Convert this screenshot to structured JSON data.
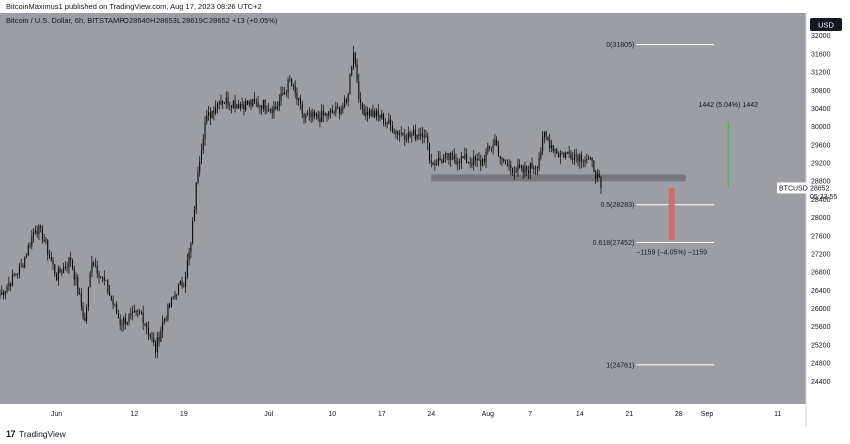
{
  "publisher": {
    "text": "BitcoinMaximus1 published on TradingView.com, Aug 17, 2023 08:26 UTC+2"
  },
  "header": {
    "symbol": "Bitcoin / U.S. Dollar, 6h, BITSTAMP",
    "o_label": "O",
    "o_value": "28640",
    "h_label": "H",
    "h_value": "28653",
    "l_label": "L",
    "l_value": "28619",
    "c_label": "C",
    "c_value": "28652",
    "change": "+13 (+0.05%)",
    "currency_button": "USD"
  },
  "footer": {
    "logo_text": "17",
    "brand": "TradingView"
  },
  "colors": {
    "background": "#9d9ea3",
    "candles": "#000000",
    "fib_lines": "#ffffff",
    "support_zone": "#77787d",
    "green_measure": "#4caf50",
    "red_measure": "#cf6e72",
    "price_tag": "#ffffff"
  },
  "chart_data": {
    "type": "candlestick",
    "symbol": "BTCUSD",
    "timeframe": "6h",
    "exchange": "BITSTAMP",
    "x_range": [
      "2023-05-24",
      "2023-09-15"
    ],
    "ylim": [
      23900,
      32500
    ],
    "y_ticks": [
      24400,
      24800,
      25200,
      25600,
      26000,
      26400,
      26800,
      27200,
      27600,
      28000,
      28400,
      28800,
      29200,
      29600,
      30000,
      30400,
      30800,
      31200,
      31600,
      32000
    ],
    "x_ticks": [
      {
        "date": "2023-06-01",
        "label": "Jun"
      },
      {
        "date": "2023-06-12",
        "label": "12"
      },
      {
        "date": "2023-06-19",
        "label": "19"
      },
      {
        "date": "2023-07-01",
        "label": "Jul"
      },
      {
        "date": "2023-07-10",
        "label": "10"
      },
      {
        "date": "2023-07-17",
        "label": "17"
      },
      {
        "date": "2023-07-24",
        "label": "24"
      },
      {
        "date": "2023-08-01",
        "label": "Aug"
      },
      {
        "date": "2023-08-07",
        "label": "7"
      },
      {
        "date": "2023-08-14",
        "label": "14"
      },
      {
        "date": "2023-08-21",
        "label": "21"
      },
      {
        "date": "2023-08-28",
        "label": "28"
      },
      {
        "date": "2023-09-01",
        "label": "Sep"
      },
      {
        "date": "2023-09-11",
        "label": "11"
      }
    ],
    "price_path": [
      [
        "2023-05-24",
        26300
      ],
      [
        "2023-05-27",
        26900
      ],
      [
        "2023-05-29",
        27800
      ],
      [
        "2023-05-30",
        27600
      ],
      [
        "2023-06-01",
        26700
      ],
      [
        "2023-06-03",
        27100
      ],
      [
        "2023-06-05",
        25700
      ],
      [
        "2023-06-06",
        27100
      ],
      [
        "2023-06-08",
        26500
      ],
      [
        "2023-06-10",
        25700
      ],
      [
        "2023-06-13",
        25900
      ],
      [
        "2023-06-15",
        25100
      ],
      [
        "2023-06-16",
        25700
      ],
      [
        "2023-06-18",
        26400
      ],
      [
        "2023-06-19",
        26600
      ],
      [
        "2023-06-20",
        27400
      ],
      [
        "2023-06-21",
        29100
      ],
      [
        "2023-06-22",
        30100
      ],
      [
        "2023-06-24",
        30600
      ],
      [
        "2023-06-27",
        30500
      ],
      [
        "2023-06-30",
        30500
      ],
      [
        "2023-07-02",
        30400
      ],
      [
        "2023-07-04",
        31000
      ],
      [
        "2023-07-06",
        30200
      ],
      [
        "2023-07-08",
        30200
      ],
      [
        "2023-07-10",
        30300
      ],
      [
        "2023-07-12",
        30500
      ],
      [
        "2023-07-13",
        31700
      ],
      [
        "2023-07-14",
        30400
      ],
      [
        "2023-07-17",
        30200
      ],
      [
        "2023-07-19",
        29900
      ],
      [
        "2023-07-21",
        29800
      ],
      [
        "2023-07-23",
        29900
      ],
      [
        "2023-07-24",
        29200
      ],
      [
        "2023-07-26",
        29300
      ],
      [
        "2023-07-28",
        29300
      ],
      [
        "2023-07-31",
        29200
      ],
      [
        "2023-08-02",
        29700
      ],
      [
        "2023-08-03",
        29200
      ],
      [
        "2023-08-06",
        29000
      ],
      [
        "2023-08-08",
        29200
      ],
      [
        "2023-08-09",
        29800
      ],
      [
        "2023-08-11",
        29400
      ],
      [
        "2023-08-13",
        29400
      ],
      [
        "2023-08-15",
        29300
      ],
      [
        "2023-08-16",
        29100
      ],
      [
        "2023-08-17",
        28652
      ]
    ],
    "fibonacci": [
      {
        "ratio": "0",
        "price": 31805,
        "label": "0(31805)"
      },
      {
        "ratio": "0.5",
        "price": 28283,
        "label": "0.5(28283)"
      },
      {
        "ratio": "0.618",
        "price": 27452,
        "label": "0.618(27452)"
      },
      {
        "ratio": "1",
        "price": 24761,
        "label": "1(24761)"
      }
    ],
    "support_zone": {
      "from": "2023-07-24",
      "to": "2023-08-29",
      "low": 28800,
      "high": 28950
    },
    "measures": [
      {
        "direction": "up",
        "from_price": 28652,
        "to_price": 30100,
        "label": "1442 (5.04%) 1442",
        "date": "2023-09-04"
      },
      {
        "direction": "down",
        "from_price": 28650,
        "to_price": 27500,
        "label": "−1159 (−4.05%) −1159",
        "date": "2023-08-27"
      }
    ],
    "last_price": {
      "symbol": "BTCUSD",
      "price": "28652",
      "countdown": "05:33:55",
      "value": 28652
    }
  }
}
